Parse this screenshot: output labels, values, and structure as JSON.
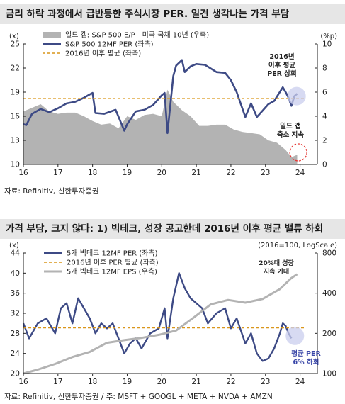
{
  "panels": [
    {
      "title": "금리 하락 과정에서 급반등한 주식시장 PER. 일견 생각나는 가격 부담",
      "source": "자료: Refinitiv, 신한투자증권",
      "unit_left": "(x)",
      "unit_right": "(%p)",
      "legend": [
        "일드 갭: S&P 500 E/P - 미국 국채 10년 (우측)",
        "S&P 500 12MF PER (좌측)",
        "2016년 이후 평균 (좌측)"
      ],
      "annotations": [
        "2016년\n이후 평균\nPER 상회",
        "일드 갭\n축소 지속"
      ],
      "colors": {
        "per": "#3d4a85",
        "avg": "#d9961a",
        "gap": "#b3b3b3",
        "marker": "#e53935",
        "circle": "#c9cdee"
      }
    },
    {
      "title": "가격 부담, 크지 않다: 1) 빅테크, 성장 공고한데 2016년 이후 평균 밸류 하회",
      "source": "자료: Refinitiv, 신한투자증권 / 주: MSFT + GOOGL + META + NVDA + AMZN",
      "unit_left": "(x)",
      "unit_right": "(2016=100, LogScale)",
      "legend": [
        "5개 빅테크 12MF PER (좌측)",
        "2016년 이후 PER 평균 (좌측)",
        "5개 빅테크 12MF EPS (우측)"
      ],
      "annotations": [
        "20%대 성장\n지속 기대",
        "평균 PER\n6% 하회"
      ],
      "colors": {
        "per": "#3d4a85",
        "avg": "#d9961a",
        "eps": "#b3b3b3",
        "circle": "#c9cdee",
        "note2": "#3a47a8"
      }
    }
  ],
  "chart_data": [
    {
      "type": "line",
      "x_range": [
        "2016-01",
        "2024-06"
      ],
      "xticks": [
        "16",
        "17",
        "18",
        "19",
        "20",
        "21",
        "22",
        "23",
        "24"
      ],
      "y_left": {
        "label": "(x)",
        "ylim": [
          10,
          25
        ],
        "ticks": [
          10,
          13,
          16,
          19,
          22,
          25
        ]
      },
      "y_right": {
        "label": "(%p)",
        "ylim": [
          0,
          10
        ],
        "ticks": [
          0,
          2,
          4,
          6,
          8,
          10
        ]
      },
      "grid": false,
      "legend_position": "top-left",
      "series": [
        {
          "name": "일드 갭: S&P 500 E/P - 미국 국채 10년 (우측)",
          "axis": "right",
          "style": "area",
          "x": [
            "2016-01",
            "2016-04",
            "2016-07",
            "2016-10",
            "2017-01",
            "2017-04",
            "2017-07",
            "2017-10",
            "2018-01",
            "2018-04",
            "2018-07",
            "2018-10",
            "2019-01",
            "2019-04",
            "2019-07",
            "2019-10",
            "2020-01",
            "2020-03",
            "2020-05",
            "2020-08",
            "2020-11",
            "2021-02",
            "2021-05",
            "2021-08",
            "2021-11",
            "2022-02",
            "2022-05",
            "2022-08",
            "2022-11",
            "2023-02",
            "2023-05",
            "2023-08",
            "2023-10",
            "2023-12"
          ],
          "values": [
            4.4,
            4.7,
            5.0,
            4.4,
            4.2,
            4.3,
            4.3,
            4.0,
            3.6,
            3.3,
            3.4,
            3.0,
            4.0,
            3.7,
            4.1,
            4.2,
            4.0,
            6.2,
            5.2,
            4.5,
            4.0,
            3.2,
            3.2,
            3.3,
            3.3,
            2.9,
            2.7,
            2.6,
            2.5,
            2.0,
            1.8,
            1.2,
            0.6,
            0.8
          ]
        },
        {
          "name": "S&P 500 12MF PER (좌측)",
          "axis": "left",
          "style": "line",
          "x": [
            "2016-01",
            "2016-02",
            "2016-04",
            "2016-07",
            "2016-10",
            "2017-01",
            "2017-04",
            "2017-07",
            "2017-10",
            "2018-01",
            "2018-02",
            "2018-05",
            "2018-09",
            "2018-12",
            "2019-01",
            "2019-04",
            "2019-07",
            "2019-10",
            "2020-01",
            "2020-02",
            "2020-03",
            "2020-05",
            "2020-06",
            "2020-08",
            "2020-09",
            "2020-11",
            "2021-01",
            "2021-04",
            "2021-08",
            "2021-11",
            "2022-01",
            "2022-03",
            "2022-06",
            "2022-08",
            "2022-10",
            "2022-12",
            "2023-02",
            "2023-04",
            "2023-07",
            "2023-08",
            "2023-09",
            "2023-10",
            "2023-11",
            "2023-12"
          ],
          "values": [
            15.0,
            14.9,
            16.3,
            16.9,
            16.5,
            17.0,
            17.6,
            17.8,
            18.3,
            18.9,
            16.4,
            16.3,
            16.8,
            14.2,
            15.0,
            16.6,
            16.8,
            17.4,
            18.6,
            18.9,
            13.9,
            21.0,
            22.3,
            23.0,
            21.5,
            22.2,
            22.5,
            22.4,
            21.5,
            21.4,
            20.5,
            19.0,
            15.9,
            17.6,
            15.9,
            16.7,
            17.5,
            17.9,
            19.6,
            19.0,
            18.3,
            17.3,
            18.5,
            18.8
          ]
        },
        {
          "name": "2016년 이후 평균 (좌측)",
          "axis": "left",
          "style": "dashed",
          "x": [
            "2016-01",
            "2024-03"
          ],
          "values": [
            18.2,
            18.2
          ]
        }
      ]
    },
    {
      "type": "line",
      "x_range": [
        "2016-01",
        "2024-06"
      ],
      "xticks": [
        "16",
        "17",
        "18",
        "19",
        "20",
        "21",
        "22",
        "23",
        "24"
      ],
      "y_left": {
        "label": "(x)",
        "ylim": [
          20,
          44
        ],
        "ticks": [
          20,
          24,
          28,
          32,
          36,
          40,
          44
        ]
      },
      "y_right": {
        "label": "(2016=100, LogScale)",
        "scale": "log",
        "ylim": [
          100,
          800
        ],
        "ticks": [
          100,
          200,
          400,
          800
        ]
      },
      "grid": false,
      "legend_position": "top-left",
      "series": [
        {
          "name": "5개 빅테크 12MF PER (좌측)",
          "axis": "left",
          "style": "line",
          "x": [
            "2016-01",
            "2016-03",
            "2016-06",
            "2016-09",
            "2016-12",
            "2017-02",
            "2017-04",
            "2017-06",
            "2017-08",
            "2017-10",
            "2017-12",
            "2018-02",
            "2018-04",
            "2018-06",
            "2018-08",
            "2018-10",
            "2018-12",
            "2019-02",
            "2019-04",
            "2019-06",
            "2019-09",
            "2019-12",
            "2020-02",
            "2020-03",
            "2020-05",
            "2020-07",
            "2020-09",
            "2020-11",
            "2021-01",
            "2021-03",
            "2021-05",
            "2021-08",
            "2021-11",
            "2022-01",
            "2022-03",
            "2022-06",
            "2022-08",
            "2022-10",
            "2022-12",
            "2023-02",
            "2023-04",
            "2023-06",
            "2023-07",
            "2023-08",
            "2023-09",
            "2023-10"
          ],
          "values": [
            30,
            27,
            30,
            31,
            28,
            33,
            34,
            30,
            35,
            33,
            31,
            28,
            30,
            29,
            30,
            27,
            24,
            26,
            27,
            25,
            28,
            29,
            33,
            27,
            35,
            40,
            37,
            35,
            34,
            33,
            30,
            32,
            33,
            29,
            31,
            26,
            28,
            24,
            22.5,
            23,
            25,
            28,
            30,
            29.5,
            28,
            27
          ]
        },
        {
          "name": "2016년 이후 PER 평균 (좌측)",
          "axis": "left",
          "style": "dashed",
          "x": [
            "2016-01",
            "2024-03"
          ],
          "values": [
            29.1,
            29.1
          ]
        },
        {
          "name": "5개 빅테크 12MF EPS (우측)",
          "axis": "right",
          "style": "line",
          "x": [
            "2016-01",
            "2016-06",
            "2016-12",
            "2017-06",
            "2017-12",
            "2018-06",
            "2018-12",
            "2019-06",
            "2019-12",
            "2020-06",
            "2020-12",
            "2021-06",
            "2021-12",
            "2022-06",
            "2022-12",
            "2023-06",
            "2023-10",
            "2023-12"
          ],
          "values": [
            100,
            107,
            118,
            133,
            145,
            170,
            178,
            185,
            195,
            210,
            262,
            330,
            356,
            340,
            362,
            430,
            520,
            555
          ]
        }
      ]
    }
  ]
}
